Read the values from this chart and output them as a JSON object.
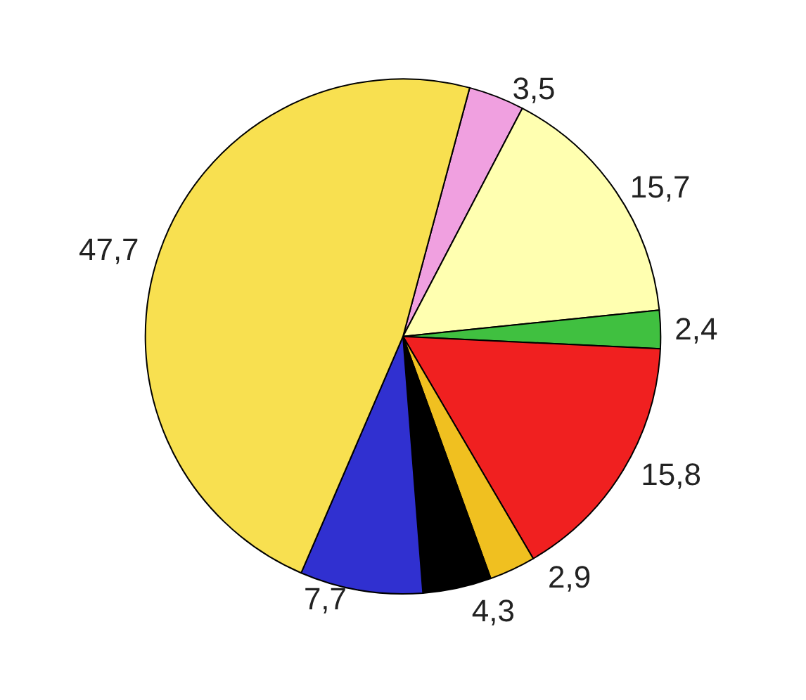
{
  "chart_data": {
    "type": "pie",
    "categories": [
      null,
      null,
      null,
      null,
      null,
      null,
      null,
      null
    ],
    "values": [
      3.5,
      15.7,
      2.4,
      15.8,
      2.9,
      4.3,
      7.7,
      47.7
    ],
    "value_labels": [
      "3,5",
      "15,7",
      "2,4",
      "15,8",
      "2,9",
      "4,3",
      "7,7",
      "47,7"
    ],
    "colors": [
      "#f0a0e0",
      "#ffffb0",
      "#40c040",
      "#f02020",
      "#f0c020",
      "#000000",
      "#3030d0",
      "#f8e050"
    ]
  }
}
